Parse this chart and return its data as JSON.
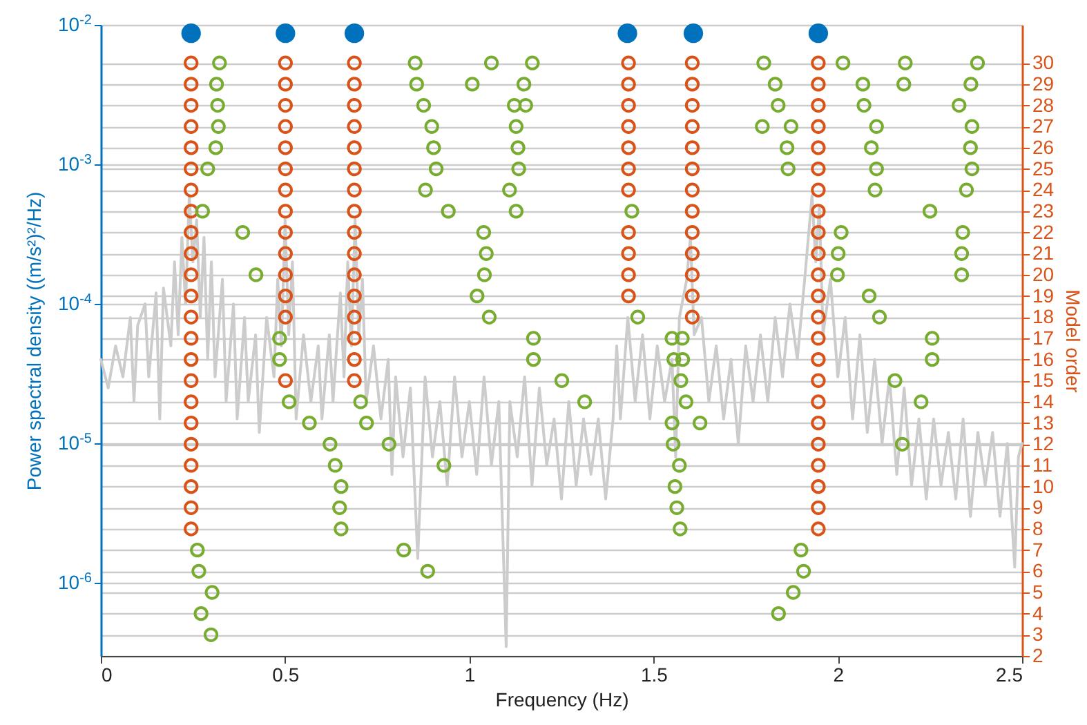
{
  "chart_data": {
    "type": "scatter",
    "xlabel": "Frequency (Hz)",
    "ylabel": "Power spectral density ((m/s²)²/Hz)",
    "y2label": "Model order",
    "xlim": [
      0,
      2.5
    ],
    "xticks": [
      0,
      0.5,
      1,
      1.5,
      2,
      2.5
    ],
    "ylim": [
      3e-07,
      0.01
    ],
    "yticks": [
      {
        "value": 0.01,
        "label": "10$^{-2}$"
      },
      {
        "value": 0.001,
        "label": "10$^{-3}$"
      },
      {
        "value": 0.0001,
        "label": "10$^{-4}$"
      },
      {
        "value": 1e-05,
        "label": "10$^{-5}$"
      },
      {
        "value": 1e-06,
        "label": "10$^{-6}$"
      }
    ],
    "y2lim": [
      2,
      31.8
    ],
    "y2ticks": [
      2,
      3,
      4,
      5,
      6,
      7,
      8,
      9,
      10,
      11,
      12,
      13,
      14,
      15,
      16,
      17,
      18,
      19,
      20,
      21,
      22,
      23,
      24,
      25,
      26,
      27,
      28,
      29,
      30
    ],
    "log": "y",
    "grid": "y",
    "marker": "circle",
    "series": [
      {
        "type": "line",
        "marker": "none",
        "color": "#cccccc",
        "x": [
          0.0,
          0.02,
          0.04,
          0.06,
          0.08,
          0.09,
          0.1,
          0.12,
          0.13,
          0.15,
          0.16,
          0.17,
          0.19,
          0.2,
          0.21,
          0.22,
          0.23,
          0.24,
          0.25,
          0.26,
          0.27,
          0.28,
          0.29,
          0.3,
          0.31,
          0.33,
          0.34,
          0.36,
          0.37,
          0.39,
          0.4,
          0.42,
          0.43,
          0.45,
          0.47,
          0.48,
          0.49,
          0.5,
          0.51,
          0.52,
          0.53,
          0.55,
          0.57,
          0.59,
          0.6,
          0.62,
          0.63,
          0.65,
          0.66,
          0.67,
          0.68,
          0.69,
          0.7,
          0.71,
          0.72,
          0.74,
          0.76,
          0.78,
          0.79,
          0.8,
          0.82,
          0.84,
          0.86,
          0.88,
          0.9,
          0.92,
          0.94,
          0.96,
          0.98,
          1.0,
          1.02,
          1.04,
          1.06,
          1.08,
          1.1,
          1.11,
          1.13,
          1.15,
          1.17,
          1.19,
          1.21,
          1.23,
          1.25,
          1.27,
          1.29,
          1.31,
          1.33,
          1.35,
          1.37,
          1.39,
          1.4,
          1.41,
          1.43,
          1.45,
          1.47,
          1.49,
          1.51,
          1.53,
          1.55,
          1.56,
          1.57,
          1.59,
          1.6,
          1.61,
          1.63,
          1.65,
          1.67,
          1.69,
          1.71,
          1.73,
          1.75,
          1.77,
          1.79,
          1.81,
          1.83,
          1.85,
          1.87,
          1.89,
          1.91,
          1.93,
          1.94,
          1.95,
          1.96,
          1.98,
          2.0,
          2.02,
          2.04,
          2.06,
          2.08,
          2.1,
          2.12,
          2.14,
          2.16,
          2.18,
          2.2,
          2.22,
          2.24,
          2.26,
          2.28,
          2.3,
          2.32,
          2.34,
          2.36,
          2.38,
          2.4,
          2.42,
          2.44,
          2.46,
          2.48,
          2.49,
          2.5
        ],
        "values": [
          4e-05,
          2.5e-05,
          5e-05,
          3e-05,
          8e-05,
          2e-05,
          7e-05,
          0.0001,
          3e-05,
          0.00012,
          1.5e-05,
          0.00013,
          5e-05,
          0.0002,
          6e-05,
          0.0003,
          0.0001,
          0.0006,
          0.0002,
          0.0004,
          8e-05,
          0.0003,
          4e-05,
          0.0002,
          3e-05,
          0.00015,
          2e-05,
          0.0001,
          1.5e-05,
          8e-05,
          2e-05,
          6e-05,
          1.2e-05,
          8e-05,
          3e-05,
          0.00015,
          5e-05,
          0.0004,
          6e-05,
          0.0002,
          1.5e-05,
          6e-05,
          2e-05,
          5e-05,
          1.5e-05,
          6e-05,
          2e-05,
          0.00012,
          3e-05,
          0.0002,
          5e-05,
          0.0004,
          6e-05,
          0.00015,
          2e-05,
          5e-05,
          1.5e-05,
          4e-05,
          6e-06,
          3e-05,
          8e-06,
          2.5e-05,
          1.5e-06,
          3e-05,
          8e-06,
          2e-05,
          5e-06,
          3e-05,
          8e-06,
          2e-05,
          6e-06,
          3e-05,
          7e-06,
          2e-05,
          3.5e-07,
          2e-05,
          8e-06,
          3e-05,
          5e-06,
          2.5e-05,
          7e-06,
          1.5e-05,
          4e-06,
          2e-05,
          5e-06,
          1.5e-05,
          6e-06,
          1.5e-05,
          4e-06,
          1.5e-05,
          5e-05,
          1.5e-05,
          8e-05,
          2e-05,
          6e-05,
          1.5e-05,
          5e-05,
          2e-05,
          4e-05,
          8e-06,
          8e-05,
          0.00015,
          0.0003,
          6e-05,
          8e-05,
          2e-05,
          5e-05,
          1.5e-05,
          4e-05,
          1e-05,
          5e-05,
          2e-05,
          6e-05,
          2e-05,
          8e-05,
          3e-05,
          0.0001,
          4e-05,
          0.00015,
          0.0006,
          0.0002,
          0.0005,
          6e-05,
          0.00015,
          3e-05,
          8e-05,
          1.5e-05,
          6e-05,
          1.2e-05,
          4e-05,
          1e-05,
          3e-05,
          6e-06,
          2.5e-05,
          5e-06,
          1.5e-05,
          4e-06,
          1.5e-05,
          5e-06,
          1.2e-05,
          4e-06,
          1.5e-05,
          3e-06,
          1.2e-05,
          5e-06,
          1.2e-05,
          3e-06,
          1e-05,
          1.3e-06,
          8e-06,
          1e-05
        ]
      },
      {
        "type": "scatter",
        "axis": "y2",
        "color": "#d95319",
        "x": [
          0.245,
          0.245,
          0.245,
          0.245,
          0.245,
          0.245,
          0.245,
          0.245,
          0.245,
          0.245,
          0.245,
          0.245,
          0.245,
          0.245,
          0.245,
          0.245,
          0.245,
          0.245,
          0.245,
          0.245,
          0.245,
          0.245,
          0.245,
          0.501,
          0.501,
          0.501,
          0.501,
          0.501,
          0.501,
          0.501,
          0.501,
          0.501,
          0.501,
          0.501,
          0.501,
          0.501,
          0.501,
          0.688,
          0.688,
          0.688,
          0.688,
          0.688,
          0.688,
          0.688,
          0.688,
          0.688,
          0.688,
          0.688,
          0.688,
          0.688,
          0.688,
          0.688,
          0.688,
          1.432,
          1.432,
          1.432,
          1.432,
          1.432,
          1.432,
          1.432,
          1.432,
          1.432,
          1.432,
          1.432,
          1.605,
          1.605,
          1.605,
          1.605,
          1.605,
          1.605,
          1.605,
          1.605,
          1.605,
          1.605,
          1.605,
          1.605,
          1.605,
          1.947,
          1.947,
          1.947,
          1.947,
          1.947,
          1.947,
          1.947,
          1.947,
          1.947,
          1.947,
          1.947,
          1.947,
          1.947,
          1.947,
          1.947,
          1.947,
          1.947,
          1.947,
          1.947,
          1.947,
          1.947,
          1.947,
          1.947
        ],
        "values": [
          8,
          9,
          10,
          11,
          12,
          13,
          14,
          15,
          16,
          17,
          18,
          19,
          20,
          21,
          22,
          23,
          24,
          25,
          26,
          27,
          28,
          29,
          30,
          15,
          18,
          19,
          20,
          21,
          22,
          23,
          24,
          25,
          26,
          27,
          28,
          29,
          30,
          15,
          16,
          17,
          18,
          19,
          20,
          21,
          22,
          23,
          24,
          25,
          26,
          27,
          28,
          29,
          30,
          19,
          20,
          21,
          22,
          24,
          25,
          26,
          27,
          28,
          29,
          30,
          18,
          19,
          20,
          21,
          22,
          23,
          24,
          25,
          26,
          27,
          28,
          29,
          30,
          8,
          9,
          10,
          11,
          12,
          13,
          14,
          15,
          16,
          17,
          18,
          19,
          20,
          21,
          22,
          23,
          24,
          25,
          26,
          27,
          28,
          29,
          30
        ]
      },
      {
        "type": "scatter",
        "axis": "y2",
        "color": "#77ac30",
        "x": [
          0.322,
          0.314,
          0.317,
          0.319,
          0.312,
          0.29,
          0.276,
          0.385,
          0.421,
          0.485,
          0.485,
          0.511,
          0.705,
          0.566,
          0.721,
          0.622,
          0.782,
          0.636,
          0.652,
          0.648,
          0.652,
          0.262,
          0.822,
          0.266,
          0.887,
          0.302,
          0.272,
          0.299,
          0.853,
          1.06,
          1.171,
          0.857,
          1.008,
          1.148,
          0.876,
          1.122,
          1.153,
          0.898,
          1.127,
          0.903,
          1.132,
          0.91,
          1.134,
          0.881,
          1.109,
          0.943,
          1.127,
          1.441,
          1.039,
          1.046,
          1.041,
          1.021,
          1.054,
          1.457,
          1.174,
          1.55,
          1.578,
          1.174,
          1.555,
          1.579,
          1.251,
          1.574,
          1.313,
          1.588,
          1.55,
          1.626,
          1.553,
          0.931,
          1.57,
          1.558,
          1.563,
          1.572,
          1.799,
          2.014,
          2.183,
          2.379,
          1.83,
          2.068,
          2.179,
          2.361,
          1.838,
          2.071,
          2.329,
          1.795,
          1.873,
          2.105,
          2.364,
          1.862,
          2.091,
          2.36,
          1.865,
          2.105,
          2.364,
          2.101,
          2.349,
          2.25,
          2.009,
          2.339,
          2.001,
          2.336,
          1.999,
          2.336,
          2.085,
          2.113,
          2.256,
          2.256,
          2.155,
          2.226,
          2.175,
          1.9,
          1.907,
          1.879,
          1.839
        ],
        "values": [
          30,
          29,
          28,
          27,
          26,
          25,
          23,
          22,
          20,
          17,
          16,
          14,
          14,
          13,
          13,
          12,
          12,
          11,
          10,
          9,
          8,
          7,
          7,
          6,
          6,
          5,
          4,
          3,
          30,
          30,
          30,
          29,
          29,
          29,
          28,
          28,
          28,
          27,
          27,
          26,
          26,
          25,
          25,
          24,
          24,
          23,
          23,
          23,
          22,
          21,
          20,
          19,
          18,
          18,
          17,
          17,
          17,
          16,
          16,
          16,
          15,
          15,
          14,
          14,
          13,
          13,
          12,
          11,
          11,
          10,
          9,
          8,
          30,
          30,
          30,
          30,
          29,
          29,
          29,
          29,
          28,
          28,
          28,
          27,
          27,
          27,
          27,
          26,
          26,
          26,
          25,
          25,
          25,
          24,
          24,
          23,
          22,
          22,
          21,
          21,
          20,
          20,
          19,
          18,
          17,
          16,
          15,
          14,
          12,
          7,
          6,
          5,
          4
        ]
      },
      {
        "type": "scatter",
        "color": "#0072bd",
        "x": [
          0.245,
          0.501,
          0.688,
          1.429,
          1.608,
          1.947
        ],
        "values": [
          0.0087,
          0.0087,
          0.0087,
          0.0087,
          0.0087,
          0.0087
        ]
      }
    ]
  }
}
